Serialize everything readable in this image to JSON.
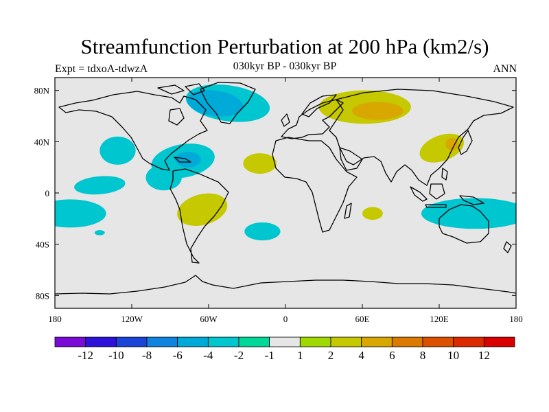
{
  "header": {
    "title": "Streamfunction Perturbation at 200 hPa (km2/s)",
    "subtitle": "030kyr BP - 030kyr BP",
    "left_label": "Expt = tdxoA-tdwzA",
    "right_label": "ANN"
  },
  "map": {
    "projection": "cylindrical-equidistant",
    "lon_range": [
      -180,
      180
    ],
    "lat_range": [
      -90,
      90
    ],
    "background_color": "#e6e6e6",
    "x_ticks": [
      {
        "value": -180,
        "label": "180"
      },
      {
        "value": -120,
        "label": "120W"
      },
      {
        "value": -60,
        "label": "60W"
      },
      {
        "value": 0,
        "label": "0"
      },
      {
        "value": 60,
        "label": "60E"
      },
      {
        "value": 120,
        "label": "120E"
      },
      {
        "value": 180,
        "label": "180"
      }
    ],
    "y_ticks": [
      {
        "value": 80,
        "label": "80N"
      },
      {
        "value": 40,
        "label": "40N"
      },
      {
        "value": 0,
        "label": "0"
      },
      {
        "value": -40,
        "label": "40S"
      },
      {
        "value": -80,
        "label": "80S"
      }
    ],
    "anomalies": [
      {
        "name": "greenland-negative",
        "level": -2,
        "lon": -45,
        "lat": 70,
        "rlon": 33,
        "rlat": 14,
        "rot": 8
      },
      {
        "name": "greenland-core",
        "level": -4,
        "lon": -55,
        "lat": 70,
        "rlon": 22,
        "rlat": 10,
        "rot": 8
      },
      {
        "name": "north-pacific-negative",
        "level": -2,
        "lon": -131,
        "lat": 33,
        "rlon": 14,
        "rlat": 11,
        "rot": 0
      },
      {
        "name": "caribbean-negative",
        "level": -2,
        "lon": -80,
        "lat": 25,
        "rlon": 25,
        "rlat": 13,
        "rot": -10
      },
      {
        "name": "caribbean-core",
        "level": -4,
        "lon": -76,
        "lat": 26,
        "rlon": 10,
        "rlat": 6,
        "rot": 0
      },
      {
        "name": "central-america-negative",
        "level": -2,
        "lon": -95,
        "lat": 12,
        "rlon": 14,
        "rlat": 10,
        "rot": 0
      },
      {
        "name": "tropical-pacific-negative",
        "level": -2,
        "lon": -145,
        "lat": 6,
        "rlon": 20,
        "rlat": 7,
        "rot": -5
      },
      {
        "name": "south-pacific-negative",
        "level": -2,
        "lon": -168,
        "lat": -16,
        "rlon": 28,
        "rlat": 11,
        "rot": 0
      },
      {
        "name": "small-south-pacific-negative",
        "level": -2,
        "lon": -145,
        "lat": -31,
        "rlon": 4,
        "rlat": 2,
        "rot": 0
      },
      {
        "name": "south-atlantic-negative",
        "level": -2,
        "lon": -18,
        "lat": -30,
        "rlon": 14,
        "rlat": 7,
        "rot": 0
      },
      {
        "name": "australia-negative",
        "level": -2,
        "lon": 148,
        "lat": -16,
        "rlon": 42,
        "rlat": 12,
        "rot": 0
      },
      {
        "name": "eurasia-positive",
        "level": 2,
        "lon": 62,
        "lat": 67,
        "rlon": 36,
        "rlat": 13,
        "rot": 0
      },
      {
        "name": "eurasia-core",
        "level": 4,
        "lon": 72,
        "lat": 64,
        "rlon": 20,
        "rlat": 7,
        "rot": 0
      },
      {
        "name": "east-asia-positive",
        "level": 2,
        "lon": 122,
        "lat": 35,
        "rlon": 18,
        "rlat": 10,
        "rot": -20
      },
      {
        "name": "east-asia-core",
        "level": 4,
        "lon": 130,
        "lat": 38,
        "rlon": 5,
        "rlat": 5,
        "rot": 0
      },
      {
        "name": "north-atlantic-positive",
        "level": 2,
        "lon": -20,
        "lat": 23,
        "rlon": 13,
        "rlat": 8,
        "rot": 0
      },
      {
        "name": "south-america-positive",
        "level": 2,
        "lon": -65,
        "lat": -13,
        "rlon": 20,
        "rlat": 12,
        "rot": -15
      },
      {
        "name": "indian-ocean-positive",
        "level": 2,
        "lon": 68,
        "lat": -16,
        "rlon": 8,
        "rlat": 5,
        "rot": 0
      }
    ]
  },
  "colorbar": {
    "levels": [
      -12,
      -10,
      -8,
      -6,
      -4,
      -2,
      -1,
      1,
      2,
      4,
      6,
      8,
      10,
      12
    ],
    "labels": [
      "-12",
      "-10",
      "-8",
      "-6",
      "-4",
      "-2",
      "-1",
      "1",
      "2",
      "4",
      "6",
      "8",
      "10",
      "12"
    ],
    "colors": [
      "#7a0ad6",
      "#2f12d9",
      "#1a45d8",
      "#0e84df",
      "#00aad8",
      "#00c6d0",
      "#00d89a",
      "#e6e6e6",
      "#a0d800",
      "#c6c800",
      "#d8a800",
      "#dc7a00",
      "#dc5000",
      "#dc2a00",
      "#d80000"
    ]
  }
}
